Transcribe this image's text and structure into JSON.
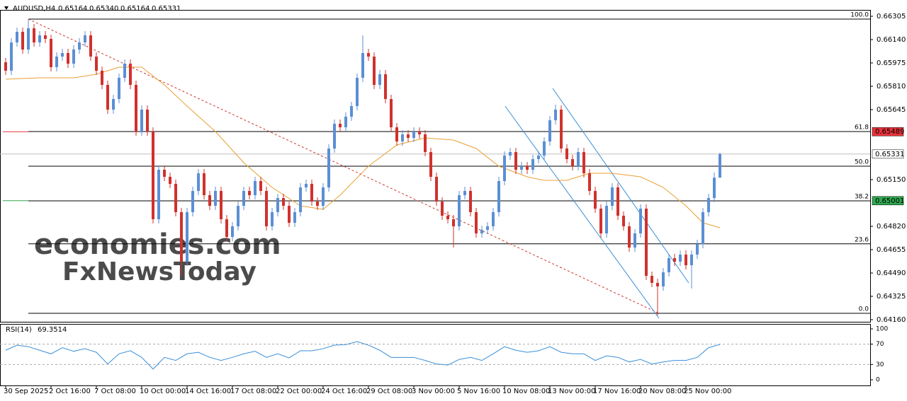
{
  "chart_data": {
    "type": "candlestick",
    "symbol": "AUDUSD,H4",
    "header_ohlc": [
      {
        "value": 0.65164,
        "label": "0.65164"
      },
      {
        "value": 0.6534,
        "label": "0.65340"
      },
      {
        "value": 0.65164,
        "label": "0.65164"
      },
      {
        "value": 0.65331,
        "label": "0.65331"
      }
    ],
    "watermark": [
      "economies.com",
      "FxNewsToday"
    ],
    "up_color": "#5b8fd4",
    "down_color": "#d0312d",
    "xlim": [
      -1,
      152.5
    ],
    "xticks": [
      {
        "value": 0,
        "label": "30 Sep 2025"
      },
      {
        "value": 8,
        "label": "2 Oct 16:00"
      },
      {
        "value": 16,
        "label": "7 Oct 08:00"
      },
      {
        "value": 24,
        "label": "10 Oct 00:00"
      },
      {
        "value": 32,
        "label": "14 Oct 16:00"
      },
      {
        "value": 40,
        "label": "17 Oct 08:00"
      },
      {
        "value": 48,
        "label": "22 Oct 00:00"
      },
      {
        "value": 56,
        "label": "24 Oct 16:00"
      },
      {
        "value": 64,
        "label": "29 Oct 08:00"
      },
      {
        "value": 72,
        "label": "3 Nov 00:00"
      },
      {
        "value": 80,
        "label": "5 Nov 16:00"
      },
      {
        "value": 88,
        "label": "10 Nov 08:00"
      },
      {
        "value": 96,
        "label": "13 Nov 00:00"
      },
      {
        "value": 104,
        "label": "17 Nov 16:00"
      },
      {
        "value": 112,
        "label": "20 Nov 08:00"
      },
      {
        "value": 120,
        "label": "25 Nov 00:00"
      }
    ],
    "ylim": [
      0.64145,
      0.6635
    ],
    "yticks": [
      {
        "value": 0.66305,
        "label": "0.66305"
      },
      {
        "value": 0.6614,
        "label": "0.66140"
      },
      {
        "value": 0.65975,
        "label": "0.65975"
      },
      {
        "value": 0.6581,
        "label": "0.65810"
      },
      {
        "value": 0.65645,
        "label": "0.65645"
      },
      {
        "value": 0.6515,
        "label": "0.65150"
      },
      {
        "value": 0.6482,
        "label": "0.64820"
      },
      {
        "value": 0.64655,
        "label": "0.64655"
      },
      {
        "value": 0.6449,
        "label": "0.64490"
      },
      {
        "value": 0.64325,
        "label": "0.64325"
      },
      {
        "value": 0.6416,
        "label": "0.64160"
      }
    ],
    "open": [
      0.6598,
      0.6592,
      0.6612,
      0.66195,
      0.6607,
      0.6622,
      0.6612,
      0.6617,
      0.66145,
      0.65945,
      0.6602,
      0.66045,
      0.6597,
      0.6607,
      0.6612,
      0.6617,
      0.6602,
      0.6592,
      0.6582,
      0.65645,
      0.6572,
      0.6587,
      0.6597,
      0.6582,
      0.6549,
      0.65645,
      0.6549,
      0.6487,
      0.6522,
      0.6517,
      0.6512,
      0.6492,
      0.6457,
      0.6492,
      0.6507,
      0.65195,
      0.6504,
      0.64965,
      0.6507,
      0.6487,
      0.64745,
      0.6482,
      0.64965,
      0.6507,
      0.6504,
      0.6514,
      0.6507,
      0.6482,
      0.6492,
      0.6502,
      0.64965,
      0.64845,
      0.6492,
      0.65095,
      0.6512,
      0.64995,
      0.64965,
      0.65095,
      0.6537,
      0.65545,
      0.6552,
      0.65595,
      0.6567,
      0.6587,
      0.66045,
      0.6602,
      0.6582,
      0.65895,
      0.6572,
      0.6552,
      0.6542,
      0.6547,
      0.65445,
      0.6549,
      0.6547,
      0.65345,
      0.6517,
      0.64995,
      0.64895,
      0.6487,
      0.6482,
      0.6504,
      0.6507,
      0.6492,
      0.6477,
      0.64795,
      0.6482,
      0.6492,
      0.6514,
      0.6532,
      0.65345,
      0.6522,
      0.65245,
      0.6522,
      0.65295,
      0.6532,
      0.6542,
      0.6557,
      0.65645,
      0.6537,
      0.65295,
      0.65245,
      0.65345,
      0.65195,
      0.6507,
      0.64945,
      0.6477,
      0.64965,
      0.65095,
      0.64895,
      0.6482,
      0.6467,
      0.6477,
      0.64945,
      0.6447,
      0.6442,
      0.64395,
      0.64495,
      0.64595,
      0.6457,
      0.6462,
      0.64545,
      0.6462,
      0.64695,
      0.6492,
      0.6502,
      0.65164
    ],
    "high": [
      0.6601,
      0.6615,
      0.66225,
      0.66225,
      0.66285,
      0.6625,
      0.662,
      0.662,
      0.66175,
      0.6605,
      0.66075,
      0.66075,
      0.661,
      0.6615,
      0.662,
      0.662,
      0.6605,
      0.6595,
      0.6585,
      0.6575,
      0.659,
      0.66,
      0.66,
      0.6585,
      0.65675,
      0.65675,
      0.6552,
      0.6525,
      0.6525,
      0.652,
      0.6515,
      0.6495,
      0.6495,
      0.651,
      0.65225,
      0.65225,
      0.6507,
      0.651,
      0.651,
      0.649,
      0.6485,
      0.64995,
      0.651,
      0.651,
      0.6517,
      0.6517,
      0.651,
      0.6495,
      0.6505,
      0.6505,
      0.64995,
      0.6495,
      0.65125,
      0.6515,
      0.6515,
      0.65025,
      0.65125,
      0.654,
      0.65575,
      0.65575,
      0.65625,
      0.657,
      0.659,
      0.6617,
      0.66075,
      0.6605,
      0.65925,
      0.65925,
      0.6575,
      0.6555,
      0.655,
      0.655,
      0.6552,
      0.6552,
      0.655,
      0.65375,
      0.652,
      0.65025,
      0.64925,
      0.649,
      0.6507,
      0.651,
      0.651,
      0.6495,
      0.64825,
      0.6485,
      0.6495,
      0.6517,
      0.6535,
      0.65375,
      0.65375,
      0.65275,
      0.65275,
      0.65325,
      0.6535,
      0.6545,
      0.656,
      0.6568,
      0.65675,
      0.654,
      0.65325,
      0.65375,
      0.65375,
      0.65225,
      0.651,
      0.64975,
      0.64995,
      0.65125,
      0.65125,
      0.64925,
      0.6485,
      0.648,
      0.64975,
      0.64975,
      0.645,
      0.6445,
      0.64525,
      0.64625,
      0.64625,
      0.6465,
      0.6465,
      0.6465,
      0.64725,
      0.6495,
      0.6505,
      0.652,
      0.6534
    ],
    "low": [
      0.6589,
      0.6589,
      0.6609,
      0.6604,
      0.6604,
      0.6609,
      0.6609,
      0.66115,
      0.65915,
      0.65915,
      0.6599,
      0.6594,
      0.6594,
      0.6604,
      0.6609,
      0.6599,
      0.6589,
      0.6579,
      0.65615,
      0.65615,
      0.6569,
      0.6584,
      0.6579,
      0.6546,
      0.6546,
      0.6546,
      0.6484,
      0.6484,
      0.6514,
      0.6509,
      0.6489,
      0.6447,
      0.6454,
      0.6489,
      0.6504,
      0.6501,
      0.64935,
      0.64935,
      0.6484,
      0.64715,
      0.64715,
      0.6479,
      0.64935,
      0.6501,
      0.6501,
      0.6504,
      0.6479,
      0.6479,
      0.6489,
      0.64935,
      0.64815,
      0.64815,
      0.6489,
      0.65065,
      0.64965,
      0.64935,
      0.64935,
      0.65065,
      0.6534,
      0.6549,
      0.6549,
      0.65565,
      0.6564,
      0.6584,
      0.6599,
      0.6579,
      0.6579,
      0.6569,
      0.6549,
      0.6539,
      0.6539,
      0.65415,
      0.65415,
      0.6544,
      0.65315,
      0.6514,
      0.64965,
      0.64865,
      0.6484,
      0.6467,
      0.6479,
      0.6501,
      0.6489,
      0.6474,
      0.6474,
      0.64765,
      0.6479,
      0.6489,
      0.6511,
      0.6529,
      0.6519,
      0.6519,
      0.6519,
      0.6519,
      0.65265,
      0.6529,
      0.6539,
      0.6554,
      0.6534,
      0.65265,
      0.65215,
      0.65215,
      0.65165,
      0.6504,
      0.64915,
      0.6474,
      0.6474,
      0.64935,
      0.64865,
      0.6479,
      0.6464,
      0.6464,
      0.6474,
      0.6444,
      0.6439,
      0.6419,
      0.64365,
      0.64465,
      0.6454,
      0.6454,
      0.64515,
      0.6438,
      0.6459,
      0.64665,
      0.6489,
      0.6499,
      0.65164
    ],
    "close": [
      0.6592,
      0.6612,
      0.66195,
      0.6607,
      0.6622,
      0.6612,
      0.6617,
      0.66145,
      0.65945,
      0.6602,
      0.66045,
      0.6597,
      0.6607,
      0.6612,
      0.6617,
      0.6602,
      0.6592,
      0.6582,
      0.65645,
      0.6572,
      0.6587,
      0.6597,
      0.6582,
      0.6549,
      0.65645,
      0.6549,
      0.6487,
      0.6522,
      0.6517,
      0.6512,
      0.6492,
      0.6457,
      0.6492,
      0.6507,
      0.65195,
      0.6504,
      0.64965,
      0.6507,
      0.6487,
      0.64745,
      0.6482,
      0.64965,
      0.6507,
      0.6504,
      0.6514,
      0.6507,
      0.6482,
      0.6492,
      0.6502,
      0.64965,
      0.64845,
      0.6492,
      0.65095,
      0.6512,
      0.64995,
      0.64965,
      0.65095,
      0.6537,
      0.65545,
      0.6552,
      0.65595,
      0.6567,
      0.6587,
      0.66045,
      0.6602,
      0.6582,
      0.65895,
      0.6572,
      0.6552,
      0.6542,
      0.6547,
      0.65445,
      0.6549,
      0.6547,
      0.65345,
      0.6517,
      0.64995,
      0.64895,
      0.6487,
      0.6482,
      0.6504,
      0.6507,
      0.6492,
      0.6477,
      0.64795,
      0.6482,
      0.6492,
      0.6514,
      0.6532,
      0.65345,
      0.6522,
      0.65245,
      0.6522,
      0.65295,
      0.6532,
      0.6542,
      0.6557,
      0.65645,
      0.6537,
      0.65295,
      0.65245,
      0.65345,
      0.65195,
      0.6507,
      0.64945,
      0.6477,
      0.64965,
      0.65095,
      0.64895,
      0.6482,
      0.6467,
      0.6477,
      0.64945,
      0.6447,
      0.6442,
      0.64395,
      0.64495,
      0.64595,
      0.6457,
      0.6462,
      0.64545,
      0.6462,
      0.64695,
      0.6492,
      0.6502,
      0.65164,
      0.65331
    ],
    "ma": {
      "color": "#e8a030",
      "x": [
        0,
        6,
        12,
        16,
        20,
        24,
        28,
        32,
        37,
        42,
        47,
        52,
        56,
        59,
        64,
        69,
        74,
        79,
        83,
        87,
        92,
        95,
        99,
        103,
        107,
        112,
        116,
        120,
        123,
        126
      ],
      "values": [
        0.6586,
        0.6587,
        0.6587,
        0.65895,
        0.65945,
        0.65945,
        0.6582,
        0.6567,
        0.6549,
        0.6527,
        0.65095,
        0.64965,
        0.6494,
        0.6504,
        0.65245,
        0.65395,
        0.65445,
        0.6543,
        0.6537,
        0.65245,
        0.6517,
        0.65145,
        0.65145,
        0.65195,
        0.65195,
        0.6517,
        0.65095,
        0.64965,
        0.64845,
        0.6481
      ]
    },
    "fibo": {
      "color": "#000000",
      "from_x": 4,
      "levels": [
        {
          "value": 0.66285,
          "label": "100.0"
        },
        {
          "value": 0.6549,
          "label": "61.8"
        },
        {
          "value": 0.65245,
          "label": "50.0"
        },
        {
          "value": 0.65,
          "label": "38.2"
        },
        {
          "value": 0.64696,
          "label": "23.6"
        },
        {
          "value": 0.64205,
          "label": "0.0"
        }
      ]
    },
    "trendlines": [
      {
        "color": "#d0312d",
        "dashed": true,
        "x": [
          4,
          115.25
        ],
        "values": [
          0.66285,
          0.64205
        ]
      },
      {
        "color": "#3a8fd8",
        "dashed": false,
        "x": [
          88.1,
          115.25
        ],
        "values": [
          0.6567,
          0.6417
        ]
      },
      {
        "color": "#3a8fd8",
        "dashed": false,
        "x": [
          96.5,
          120.5
        ],
        "values": [
          0.65795,
          0.6442
        ]
      }
    ],
    "price_line": {
      "value": 0.65331,
      "color": "#c0c0c0"
    },
    "price_tags": [
      {
        "value": 0.65489,
        "label": "0.65489",
        "color": "#e8323c",
        "text_color": "#ffffff"
      },
      {
        "value": 0.65331,
        "label": "0.65331",
        "color": "#ffffff",
        "text_color": "#000000"
      },
      {
        "value": 0.65001,
        "label": "0.65001",
        "color": "#2fa84f",
        "text_color": "#ffffff"
      }
    ],
    "rsi": {
      "label": "RSI(14)",
      "last": 69.3514,
      "color": "#3a8fd8",
      "ylim": [
        -11.1,
        109.7
      ],
      "yticks": [
        100,
        70,
        30,
        0
      ],
      "levels": [
        70,
        30
      ],
      "x": [
        0,
        2,
        4,
        6,
        8,
        10,
        12,
        14,
        16,
        18,
        20,
        22,
        24,
        26,
        28,
        30,
        32,
        34,
        36,
        38,
        40,
        42,
        44,
        46,
        48,
        50,
        52,
        54,
        56,
        58,
        60,
        62,
        64,
        66,
        68,
        70,
        72,
        74,
        76,
        78,
        80,
        82,
        84,
        86,
        88,
        90,
        92,
        94,
        96,
        98,
        100,
        102,
        104,
        106,
        108,
        110,
        112,
        114,
        116,
        118,
        120,
        122,
        124,
        126
      ],
      "values": [
        58,
        68,
        65,
        58,
        51,
        63,
        56,
        61,
        54,
        31,
        51,
        57,
        44,
        21,
        44,
        38,
        51,
        54,
        44,
        38,
        44,
        51,
        56,
        44,
        51,
        43,
        57,
        57,
        61,
        68,
        69,
        75,
        68,
        58,
        44,
        44,
        44,
        38,
        31,
        29,
        40,
        44,
        38,
        51,
        65,
        58,
        54,
        57,
        65,
        54,
        51,
        51,
        38,
        47,
        44,
        35,
        40,
        31,
        35,
        38,
        38,
        44,
        63,
        69.3514
      ]
    }
  }
}
